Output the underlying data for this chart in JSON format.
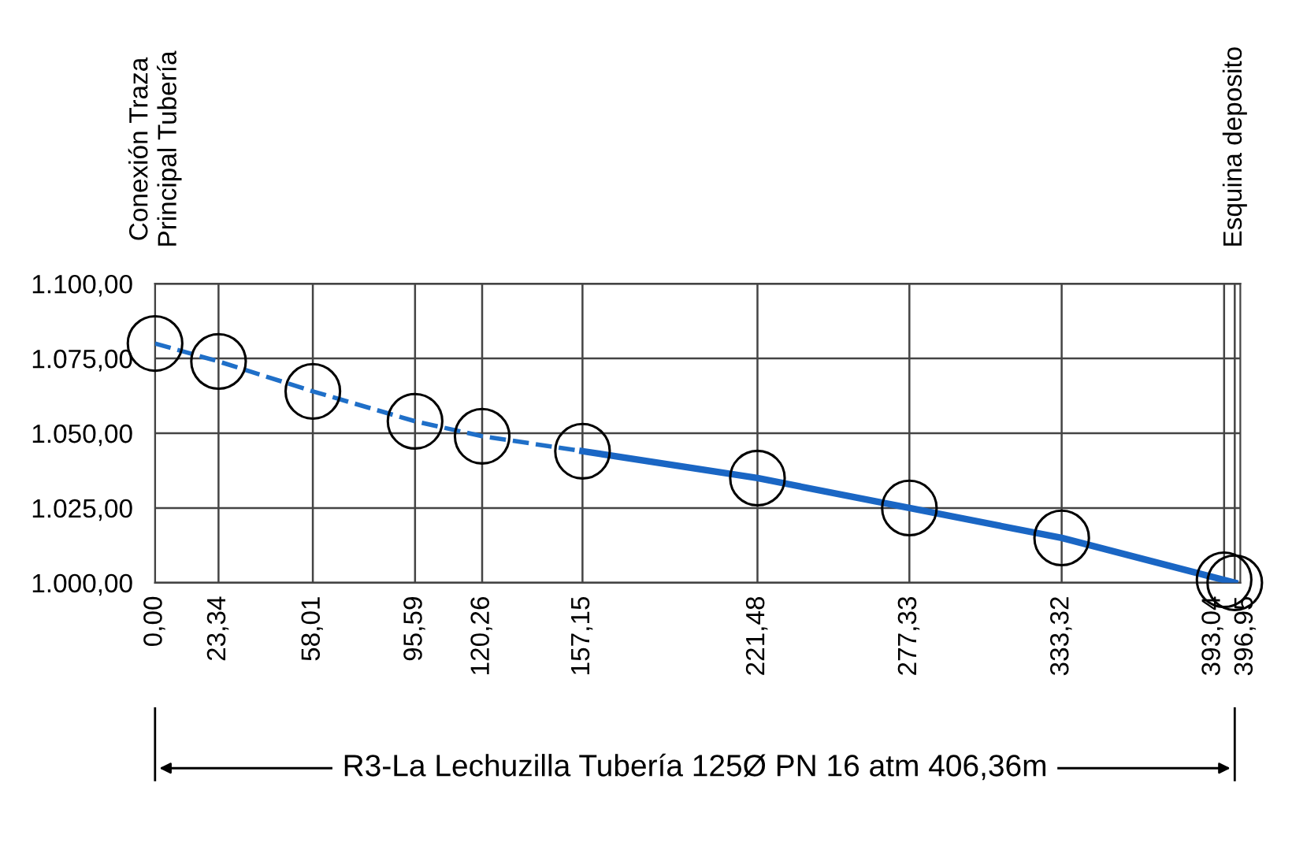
{
  "chart_data": {
    "type": "line",
    "x": [
      0,
      23.34,
      58.01,
      95.59,
      120.26,
      157.15,
      221.48,
      277.33,
      333.32,
      393.04,
      396.95
    ],
    "series": [
      {
        "color": "#1f6fc8",
        "line_style": "dashed",
        "marker": "none",
        "x": [
          0,
          23.34,
          58.01,
          95.59,
          120.26,
          157.15
        ],
        "values": [
          1080,
          1074,
          1064,
          1054,
          1049,
          1044
        ]
      },
      {
        "color": "#1a66c4",
        "line_style": "solid",
        "marker": "none",
        "x": [
          157.15,
          221.48,
          277.33,
          333.32,
          396.95
        ],
        "values": [
          1044,
          1035,
          1025,
          1015,
          1000
        ]
      },
      {
        "type": "scatter",
        "color": "#000000",
        "marker": "circle",
        "values": [
          1080,
          1074,
          1064,
          1054,
          1049,
          1044,
          1035,
          1025,
          1015,
          1001,
          1000
        ]
      }
    ],
    "xlim": [
      0,
      399
    ],
    "xticks": [
      {
        "value": 0,
        "label": "0,00"
      },
      {
        "value": 23.34,
        "label": "23,34"
      },
      {
        "value": 58.01,
        "label": "58,01"
      },
      {
        "value": 95.59,
        "label": "95,59"
      },
      {
        "value": 120.26,
        "label": "120,26"
      },
      {
        "value": 157.15,
        "label": "157,15"
      },
      {
        "value": 221.48,
        "label": "221,48"
      },
      {
        "value": 277.33,
        "label": "277,33"
      },
      {
        "value": 333.32,
        "label": "333,32"
      },
      {
        "value": 393.04,
        "label": "393,04"
      },
      {
        "value": 396.95,
        "label": "396,95"
      }
    ],
    "ylim": [
      1000,
      1100
    ],
    "yticks": [
      {
        "value": 1000,
        "label": "1.000,00"
      },
      {
        "value": 1025,
        "label": "1.025,00"
      },
      {
        "value": 1050,
        "label": "1.050,00"
      },
      {
        "value": 1075,
        "label": "1.075,00"
      },
      {
        "value": 1100,
        "label": "1.100,00"
      }
    ],
    "grid": true,
    "annotations": [
      "Conexión Traza\nPrincipal Tubería",
      "Esquina deposito",
      "R3-La Lechuzilla Tubería 125Ø PN 16 atm 406,36m"
    ]
  }
}
